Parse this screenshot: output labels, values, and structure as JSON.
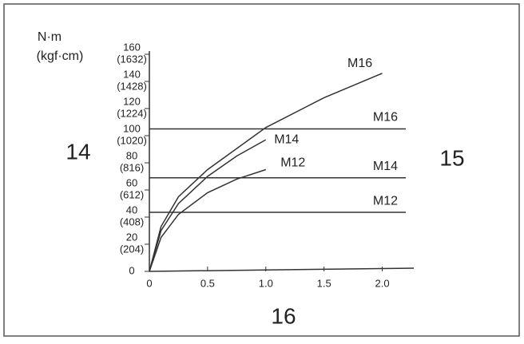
{
  "chart_data": {
    "type": "line",
    "y_label": "N·m",
    "y2_label": "(kgf·cm)",
    "xlim": [
      0,
      2.25
    ],
    "xticks": [
      0,
      0.5,
      {
        "value": 1,
        "label": "1.0"
      },
      1.5,
      {
        "value": 2,
        "label": "2.0"
      }
    ],
    "ylim": [
      0,
      160
    ],
    "yticks": [
      0,
      20,
      40,
      60,
      80,
      100,
      120,
      140,
      160
    ],
    "y2lim": [
      0,
      1632
    ],
    "y2ticks": [
      {
        "value": 204,
        "label": "(204)"
      },
      {
        "value": 408,
        "label": "(408)"
      },
      {
        "value": 612,
        "label": "(612)"
      },
      {
        "value": 816,
        "label": "(816)"
      },
      {
        "value": 1020,
        "label": "(1020)"
      },
      {
        "value": 1224,
        "label": "(1224)"
      },
      {
        "value": 1428,
        "label": "(1428)"
      },
      {
        "value": 1632,
        "label": "(1632)"
      }
    ],
    "series": [
      {
        "name": "M16",
        "color": "#333333",
        "x": [
          0,
          0.1,
          0.25,
          0.5,
          1.0,
          1.5,
          2.0
        ],
        "values": [
          0,
          33,
          55,
          75,
          106,
          128,
          146
        ]
      },
      {
        "name": "M14",
        "color": "#333333",
        "x": [
          0,
          0.1,
          0.25,
          0.5,
          0.75,
          1.0
        ],
        "values": [
          0,
          30,
          50,
          70,
          85,
          97
        ]
      },
      {
        "name": "M12",
        "color": "#333333",
        "x": [
          0,
          0.1,
          0.25,
          0.5,
          0.75,
          1.0
        ],
        "values": [
          0,
          25,
          42,
          58,
          68,
          75
        ]
      }
    ],
    "reference_lines": [
      {
        "label": "M16",
        "value": 105
      },
      {
        "label": "M14",
        "value": 69
      },
      {
        "label": "M12",
        "value": 43.5
      }
    ],
    "annotations": [
      "14",
      "15",
      "16"
    ]
  }
}
